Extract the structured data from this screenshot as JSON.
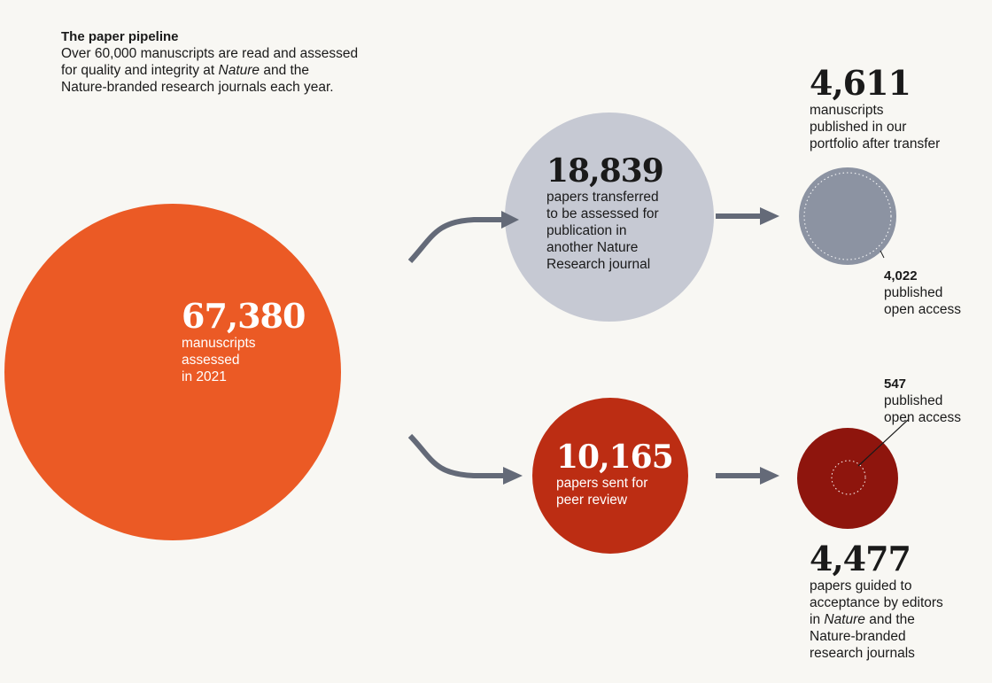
{
  "header": {
    "title": "The paper pipeline",
    "lines": [
      {
        "pre": "Over 60,000 manuscripts are read and assessed",
        "em": "",
        "post": ""
      },
      {
        "pre": "for quality and integrity at ",
        "em": "Nature",
        "post": " and the"
      },
      {
        "pre": "Nature-branded research journals each year.",
        "em": "",
        "post": ""
      }
    ]
  },
  "nodes": {
    "assessed": {
      "value": "67,380",
      "label": [
        "manuscripts",
        "assessed",
        "in 2021"
      ],
      "color": "#eb5a25"
    },
    "transferred": {
      "value": "18,839",
      "label": [
        "papers transferred",
        "to be assessed for",
        "publication in",
        "another Nature",
        "Research journal"
      ],
      "color": "#c6c9d3"
    },
    "peer_review": {
      "value": "10,165",
      "label": [
        "papers sent for",
        "peer review"
      ],
      "color": "#bc2d13"
    },
    "published_transfer": {
      "value": "4,611",
      "label": [
        "manuscripts",
        "published in our",
        "portfolio after transfer"
      ],
      "color": "#8c93a2"
    },
    "guided": {
      "value": "4,477",
      "label": [
        {
          "pre": "papers guided to",
          "em": "",
          "post": ""
        },
        {
          "pre": "acceptance by editors",
          "em": "",
          "post": ""
        },
        {
          "pre": "in ",
          "em": "Nature",
          "post": " and the"
        },
        {
          "pre": "Nature-branded",
          "em": "",
          "post": ""
        },
        {
          "pre": "research journals",
          "em": "",
          "post": ""
        }
      ],
      "color": "#8e150d"
    }
  },
  "open_access": {
    "transfer": {
      "value": "4,022",
      "label": [
        "published",
        "open access"
      ]
    },
    "guided": {
      "value": "547",
      "label": [
        "published",
        "open access"
      ]
    }
  },
  "colors": {
    "background": "#f8f7f3",
    "arrow": "#646a78"
  }
}
